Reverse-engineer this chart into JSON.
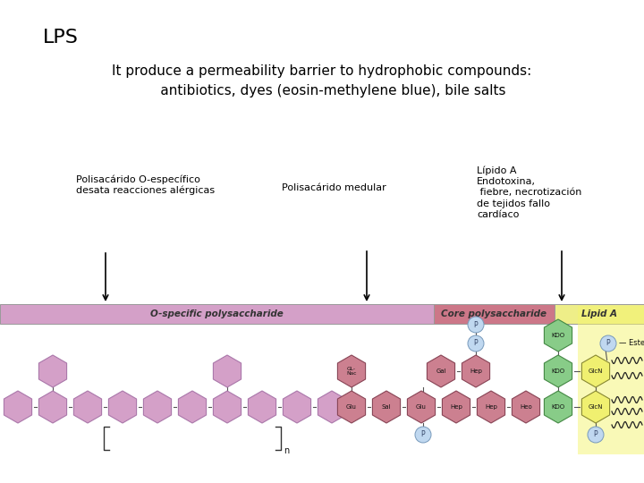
{
  "title": "LPS",
  "subtitle": "It produce a permeability barrier to hydrophobic compounds:\n     antibiotics, dyes (eosin-methylene blue), bile salts",
  "label1_text": "Polisacárido O-específico\ndesata reacciones alérgicas",
  "label2_text": "Polisacárido medular",
  "label3_text": "Lípido A\nEndotoxina,\n fiebre, necrotización\nde tejidos fallo\ncardíaco",
  "bg_color": "#ffffff",
  "title_fontsize": 16,
  "subtitle_fontsize": 11,
  "label_fontsize": 8,
  "C_PURPLE": "#d4a0c8",
  "C_RED": "#cc8090",
  "C_GREEN": "#88cc88",
  "C_YELLOW": "#f0f070",
  "C_BLUE": "#c0d8f0",
  "bar1_color": "#d4a0c8",
  "bar2_color": "#cc7788",
  "bar3_color": "#eeee88",
  "bar1_label": "O-specific polysaccharide",
  "bar2_label": "Core polysaccharide",
  "bar3_label": "Lipid A"
}
